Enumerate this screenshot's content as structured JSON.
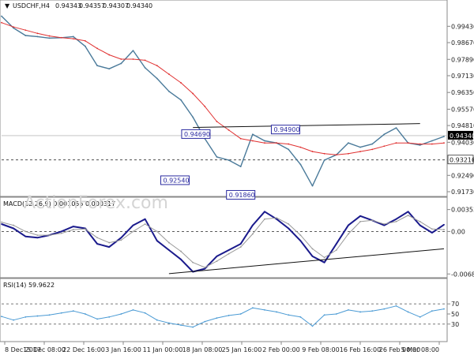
{
  "chart_data": [
    {
      "type": "line",
      "panel": "price",
      "title": "USDCHF,H4",
      "ohlc": [
        "0.94343",
        "0.94357",
        "0.94307",
        "0.94340"
      ],
      "ylim": [
        0.9162,
        1.0014
      ],
      "yticks": [
        "0.99430",
        "0.98670",
        "0.97890",
        "0.97130",
        "0.96350",
        "0.95570",
        "0.94810",
        "0.94030",
        "0.93210",
        "0.92490",
        "0.91730"
      ],
      "y_tick_values": [
        0.9943,
        0.9867,
        0.9789,
        0.9713,
        0.9635,
        0.9557,
        0.9481,
        0.9403,
        0.9321,
        0.9249,
        0.9173
      ],
      "current_price": {
        "label": "0.94340",
        "value": 0.9434,
        "color": "#000000"
      },
      "support_level": {
        "label": "0.93210",
        "value": 0.9321
      },
      "x": [
        0,
        8,
        16,
        24,
        32,
        40,
        48,
        56,
        64,
        72,
        80,
        88,
        96,
        104,
        112,
        120,
        128,
        136,
        144,
        152,
        160,
        168,
        176,
        184,
        192,
        200,
        208,
        216,
        224,
        232,
        240,
        248,
        256,
        264,
        272,
        280,
        288,
        296
      ],
      "series": [
        {
          "kind": "price",
          "color": "#4a7a9a",
          "values": [
            0.999,
            0.9935,
            0.99,
            0.9895,
            0.9888,
            0.989,
            0.9895,
            0.985,
            0.976,
            0.9745,
            0.977,
            0.983,
            0.975,
            0.97,
            0.964,
            0.96,
            0.952,
            0.942,
            0.9335,
            0.932,
            0.929,
            0.944,
            0.941,
            0.94,
            0.937,
            0.93,
            0.92,
            0.932,
            0.9345,
            0.94,
            0.938,
            0.9395,
            0.944,
            0.947,
            0.94,
            0.939,
            0.941,
            0.943
          ]
        },
        {
          "kind": "ma",
          "color": "#e03030",
          "values": [
            0.996,
            0.994,
            0.9925,
            0.991,
            0.9898,
            0.989,
            0.9885,
            0.9875,
            0.984,
            0.981,
            0.979,
            0.979,
            0.9785,
            0.976,
            0.972,
            0.968,
            0.963,
            0.957,
            0.95,
            0.946,
            0.942,
            0.941,
            0.94,
            0.94,
            0.9395,
            0.938,
            0.936,
            0.935,
            0.9345,
            0.935,
            0.936,
            0.937,
            0.9385,
            0.94,
            0.94,
            0.9395,
            0.9395,
            0.94
          ]
        }
      ],
      "trendline": {
        "x": [
          128,
          280
        ],
        "values": [
          0.9472,
          0.949
        ],
        "color": "#111111"
      },
      "annotations": [
        {
          "label": "0.94690",
          "x": 130,
          "value": 0.9469
        },
        {
          "label": "0.92540",
          "x": 116,
          "value": 0.9254
        },
        {
          "label": "0.91860",
          "x": 160,
          "value": 0.9186
        },
        {
          "label": "0.94900",
          "x": 190,
          "value": 0.949
        }
      ],
      "watermark": "ActionForex.com"
    },
    {
      "type": "line",
      "panel": "macd",
      "title": "MACD(12,26,9) 0.001055 0.000317",
      "ylim": [
        -0.0072,
        0.004
      ],
      "yticks": [
        "0.003538",
        "0.00",
        "-0.006853"
      ],
      "y_tick_values": [
        0.003538,
        0,
        -0.006853
      ],
      "x": [
        0,
        8,
        16,
        24,
        32,
        40,
        48,
        56,
        64,
        72,
        80,
        88,
        96,
        104,
        112,
        120,
        128,
        136,
        144,
        152,
        160,
        168,
        176,
        184,
        192,
        200,
        208,
        216,
        224,
        232,
        240,
        248,
        256,
        264,
        272,
        280,
        288,
        296
      ],
      "series": [
        {
          "kind": "macd",
          "color": "#1a1a8c",
          "values": [
            0.0012,
            0.0005,
            -0.0008,
            -0.001,
            -0.0006,
            0.0,
            0.0008,
            0.0005,
            -0.002,
            -0.0025,
            -0.001,
            0.001,
            0.002,
            -0.0015,
            -0.003,
            -0.0045,
            -0.0065,
            -0.006,
            -0.004,
            -0.003,
            -0.002,
            0.001,
            0.0032,
            0.002,
            0.0005,
            -0.0015,
            -0.004,
            -0.005,
            -0.002,
            0.001,
            0.0025,
            0.0018,
            0.001,
            0.002,
            0.0032,
            0.001,
            -0.0002,
            0.0011
          ]
        },
        {
          "kind": "signal",
          "color": "#999999",
          "values": [
            0.0015,
            0.001,
            0.0,
            -0.0006,
            -0.0006,
            -0.0003,
            0.0003,
            0.0004,
            -0.001,
            -0.0018,
            -0.0014,
            0.0,
            0.0012,
            0.0,
            -0.0018,
            -0.0032,
            -0.005,
            -0.0058,
            -0.0048,
            -0.0036,
            -0.0025,
            -0.0004,
            0.002,
            0.0022,
            0.0012,
            -0.0006,
            -0.0028,
            -0.0042,
            -0.003,
            -0.0004,
            0.0016,
            0.0018,
            0.0012,
            0.0016,
            0.0026,
            0.0016,
            0.0004,
            0.0003
          ]
        }
      ],
      "trendline": {
        "x": [
          112,
          296
        ],
        "values": [
          -0.0068,
          -0.0028
        ],
        "color": "#111111"
      }
    },
    {
      "type": "line",
      "panel": "rsi",
      "title": "RSI(14) 59.9622",
      "ylim": [
        0,
        100
      ],
      "yticks": [
        "70",
        "50",
        "30"
      ],
      "y_tick_values": [
        70,
        50,
        30
      ],
      "levels": [
        70,
        30
      ],
      "x": [
        0,
        8,
        16,
        24,
        32,
        40,
        48,
        56,
        64,
        72,
        80,
        88,
        96,
        104,
        112,
        120,
        128,
        136,
        144,
        152,
        160,
        168,
        176,
        184,
        192,
        200,
        208,
        216,
        224,
        232,
        240,
        248,
        256,
        264,
        272,
        280,
        288,
        296
      ],
      "series": [
        {
          "kind": "rsi",
          "color": "#4a9ad4",
          "values": [
            45,
            38,
            44,
            46,
            48,
            52,
            56,
            50,
            40,
            44,
            50,
            58,
            52,
            38,
            32,
            28,
            24,
            35,
            42,
            47,
            50,
            62,
            58,
            54,
            48,
            44,
            26,
            48,
            50,
            58,
            54,
            56,
            60,
            66,
            54,
            44,
            56,
            60
          ]
        }
      ]
    }
  ],
  "x_axis_labels": [
    "8 Dec 2017",
    "15 Dec 08:00",
    "22 Dec 16:00",
    "3 Jan 16:00",
    "11 Jan 00:00",
    "18 Jan 08:00",
    "25 Jan 16:00",
    "2 Feb 00:00",
    "9 Feb 08:00",
    "16 Feb 16:00",
    "26 Feb 00:00",
    "5 Mar 08:00"
  ]
}
